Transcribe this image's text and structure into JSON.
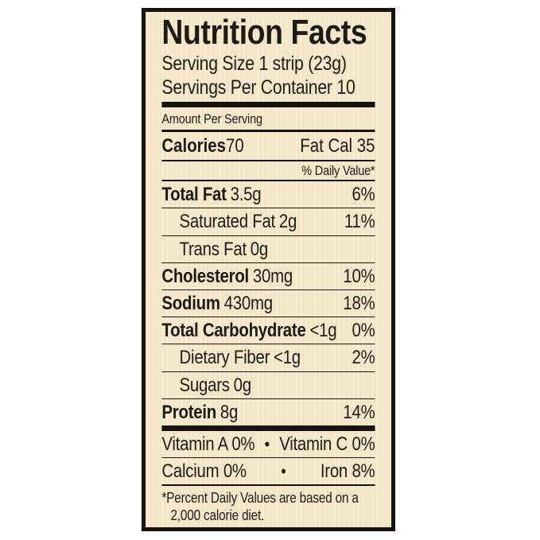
{
  "label": {
    "title": "Nutrition Facts",
    "serving_size": "Serving Size 1 strip (23g)",
    "servings_per_container": "Servings Per Container 10",
    "amount_per_serving": "Amount Per Serving",
    "calories": {
      "label": "Calories",
      "value": "70",
      "fat_cal": "Fat Cal 35"
    },
    "daily_value_header": "% Daily Value*",
    "nutrients": [
      {
        "label": "Total Fat",
        "amount": "3.5g",
        "dv": "6%"
      },
      {
        "label": "Saturated Fat",
        "amount": "2g",
        "dv": "11%"
      },
      {
        "label": "Trans Fat",
        "amount": "0g",
        "dv": ""
      },
      {
        "label": "Cholesterol",
        "amount": "30mg",
        "dv": "10%"
      },
      {
        "label": "Sodium",
        "amount": "430mg",
        "dv": "18%"
      },
      {
        "label": "Total Carbohydrate",
        "amount": "<1g",
        "dv": "0%"
      },
      {
        "label": "Dietary Fiber",
        "amount": "<1g",
        "dv": "2%"
      },
      {
        "label": "Sugars",
        "amount": "0g",
        "dv": ""
      },
      {
        "label": "Protein",
        "amount": "8g",
        "dv": "14%"
      }
    ],
    "vitamins": [
      {
        "left": "Vitamin A 0%",
        "bullet": "•",
        "right": "Vitamin C 0%"
      },
      {
        "left": "Calcium 0%",
        "bullet": "•",
        "right": "Iron 8%"
      }
    ],
    "footnote": {
      "line1": "*Percent Daily Values are based on a",
      "line2": "2,000 calorie diet."
    },
    "colors": {
      "background": "#f5e8cb",
      "text": "#1e1b16",
      "border": "#161310"
    }
  }
}
